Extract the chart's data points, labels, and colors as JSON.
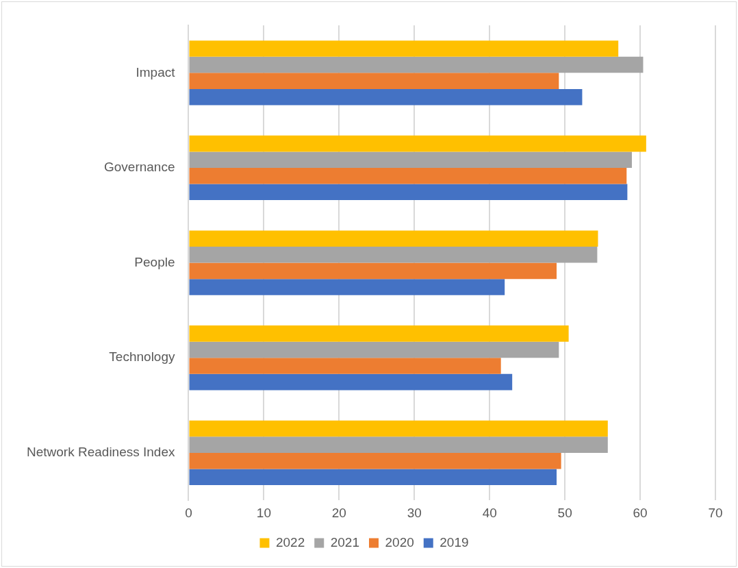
{
  "chart_data": {
    "type": "bar",
    "orientation": "horizontal",
    "categories": [
      "Impact",
      "Governance",
      "People",
      "Technology",
      "Network Readiness Index"
    ],
    "series": [
      {
        "name": "2022",
        "color": "#ffc000",
        "values": [
          57.1,
          60.8,
          54.4,
          50.5,
          55.7
        ]
      },
      {
        "name": "2021",
        "color": "#a5a5a5",
        "values": [
          60.4,
          58.9,
          54.3,
          49.2,
          55.7
        ]
      },
      {
        "name": "2020",
        "color": "#ed7d31",
        "values": [
          49.2,
          58.2,
          48.9,
          41.5,
          49.5
        ]
      },
      {
        "name": "2019",
        "color": "#4472c4",
        "values": [
          52.3,
          58.3,
          42.0,
          43.0,
          48.9
        ]
      }
    ],
    "xlim": [
      0,
      70
    ],
    "xticks": [
      0,
      10,
      20,
      30,
      40,
      50,
      60,
      70
    ],
    "grid": "x",
    "legend": "bottom"
  }
}
